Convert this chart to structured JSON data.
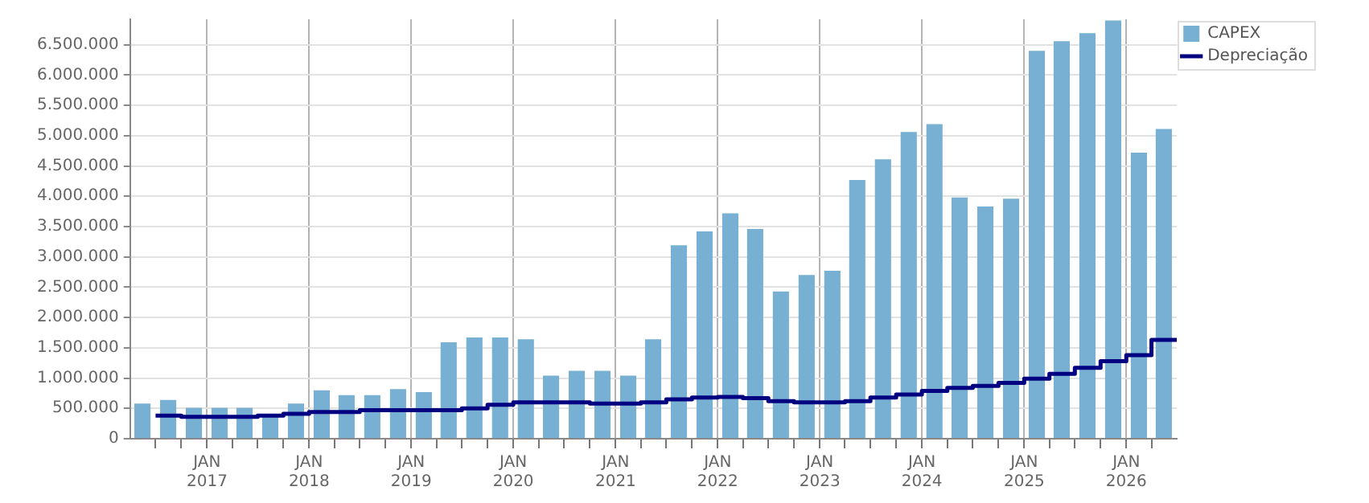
{
  "chart_data": {
    "type": "bar",
    "legend": "top right",
    "grid": true,
    "xlim": [
      "2016-04-01",
      "2026-07-01"
    ],
    "xticks": [
      {
        "value": "2016-07-01",
        "label": null
      },
      {
        "value": "2016-10-01",
        "label": null
      },
      {
        "value": "2017-01-01",
        "label": "JAN 2017"
      },
      {
        "value": "2017-04-01",
        "label": null
      },
      {
        "value": "2017-07-01",
        "label": null
      },
      {
        "value": "2017-10-01",
        "label": null
      },
      {
        "value": "2018-01-01",
        "label": "JAN 2018"
      },
      {
        "value": "2018-04-01",
        "label": null
      },
      {
        "value": "2018-07-01",
        "label": null
      },
      {
        "value": "2018-10-01",
        "label": null
      },
      {
        "value": "2019-01-01",
        "label": "JAN 2019"
      },
      {
        "value": "2019-04-01",
        "label": null
      },
      {
        "value": "2019-07-01",
        "label": null
      },
      {
        "value": "2019-10-01",
        "label": null
      },
      {
        "value": "2020-01-01",
        "label": "JAN 2020"
      },
      {
        "value": "2020-04-01",
        "label": null
      },
      {
        "value": "2020-07-01",
        "label": null
      },
      {
        "value": "2020-10-01",
        "label": null
      },
      {
        "value": "2021-01-01",
        "label": "JAN 2021"
      },
      {
        "value": "2021-04-01",
        "label": null
      },
      {
        "value": "2021-07-01",
        "label": null
      },
      {
        "value": "2021-10-01",
        "label": null
      },
      {
        "value": "2022-01-01",
        "label": "JAN 2022"
      },
      {
        "value": "2022-04-01",
        "label": null
      },
      {
        "value": "2022-07-01",
        "label": null
      },
      {
        "value": "2022-10-01",
        "label": null
      },
      {
        "value": "2023-01-01",
        "label": "JAN 2023"
      },
      {
        "value": "2023-04-01",
        "label": null
      },
      {
        "value": "2023-07-01",
        "label": null
      },
      {
        "value": "2023-10-01",
        "label": null
      },
      {
        "value": "2024-01-01",
        "label": "JAN 2024"
      },
      {
        "value": "2024-04-01",
        "label": null
      },
      {
        "value": "2024-07-01",
        "label": null
      },
      {
        "value": "2024-10-01",
        "label": null
      },
      {
        "value": "2025-01-01",
        "label": "JAN 2025"
      },
      {
        "value": "2025-04-01",
        "label": null
      },
      {
        "value": "2025-07-01",
        "label": null
      },
      {
        "value": "2025-10-01",
        "label": null
      },
      {
        "value": "2026-01-01",
        "label": "JAN 2026"
      },
      {
        "value": "2026-04-01",
        "label": null
      }
    ],
    "ylim": [
      0,
      6920000
    ],
    "yticks": [
      {
        "value": 0,
        "label": "0"
      },
      {
        "value": 500000,
        "label": "500.000"
      },
      {
        "value": 1000000,
        "label": "1.000.000"
      },
      {
        "value": 1500000,
        "label": "1.500.000"
      },
      {
        "value": 2000000,
        "label": "2.000.000"
      },
      {
        "value": 2500000,
        "label": "2.500.000"
      },
      {
        "value": 3000000,
        "label": "3.000.000"
      },
      {
        "value": 3500000,
        "label": "3.500.000"
      },
      {
        "value": 4000000,
        "label": "4.000.000"
      },
      {
        "value": 4500000,
        "label": "4.500.000"
      },
      {
        "value": 5000000,
        "label": "5.000.000"
      },
      {
        "value": 5500000,
        "label": "5.500.000"
      },
      {
        "value": 6000000,
        "label": "6.000.000"
      },
      {
        "value": 6500000,
        "label": "6.500.000"
      }
    ],
    "x": [
      "2016-05-15",
      "2016-08-15",
      "2016-11-15",
      "2017-02-15",
      "2017-05-15",
      "2017-08-15",
      "2017-11-15",
      "2018-02-15",
      "2018-05-15",
      "2018-08-15",
      "2018-11-15",
      "2019-02-15",
      "2019-05-15",
      "2019-08-15",
      "2019-11-15",
      "2020-02-15",
      "2020-05-15",
      "2020-08-15",
      "2020-11-15",
      "2021-02-15",
      "2021-05-15",
      "2021-08-15",
      "2021-11-15",
      "2022-02-15",
      "2022-05-15",
      "2022-08-15",
      "2022-11-15",
      "2023-02-15",
      "2023-05-15",
      "2023-08-15",
      "2023-11-15",
      "2024-02-15",
      "2024-05-15",
      "2024-08-15",
      "2024-11-15",
      "2025-02-15",
      "2025-05-15",
      "2025-08-15",
      "2025-11-15",
      "2026-02-15",
      "2026-05-15"
    ],
    "series": [
      {
        "name": "CAPEX",
        "color": "#77b0d3",
        "values": [
          580000,
          640000,
          510000,
          510000,
          510000,
          390000,
          580000,
          800000,
          720000,
          720000,
          820000,
          770000,
          1590000,
          1670000,
          1670000,
          1640000,
          1040000,
          1120000,
          1120000,
          1040000,
          1640000,
          3190000,
          3420000,
          3720000,
          3460000,
          2430000,
          2700000,
          2770000,
          4270000,
          4610000,
          5060000,
          5190000,
          3980000,
          3830000,
          3960000,
          6400000,
          6560000,
          6690000,
          6900000,
          4720000,
          5110000
        ]
      },
      {
        "name": "Depreciação",
        "type": "step",
        "color": "#000080",
        "marker": "none",
        "x": [
          "2016-07-01",
          "2016-10-01",
          "2017-01-01",
          "2017-04-01",
          "2017-07-01",
          "2017-10-01",
          "2018-01-01",
          "2018-04-01",
          "2018-07-01",
          "2018-10-01",
          "2019-01-01",
          "2019-04-01",
          "2019-07-01",
          "2019-10-01",
          "2020-01-01",
          "2020-04-01",
          "2020-07-01",
          "2020-10-01",
          "2021-01-01",
          "2021-04-01",
          "2021-07-01",
          "2021-10-01",
          "2022-01-01",
          "2022-04-01",
          "2022-07-01",
          "2022-10-01",
          "2023-01-01",
          "2023-04-01",
          "2023-07-01",
          "2023-10-01",
          "2024-01-01",
          "2024-04-01",
          "2024-07-01",
          "2024-10-01",
          "2025-01-01",
          "2025-04-01",
          "2025-07-01",
          "2025-10-01",
          "2026-01-01",
          "2026-04-01",
          "2026-07-01"
        ],
        "values": [
          380000,
          360000,
          360000,
          360000,
          380000,
          410000,
          440000,
          440000,
          470000,
          470000,
          470000,
          470000,
          500000,
          560000,
          600000,
          600000,
          600000,
          580000,
          580000,
          600000,
          650000,
          680000,
          690000,
          670000,
          620000,
          600000,
          600000,
          620000,
          680000,
          730000,
          790000,
          840000,
          870000,
          920000,
          990000,
          1070000,
          1170000,
          1280000,
          1380000,
          1630000,
          1630000
        ]
      }
    ]
  }
}
